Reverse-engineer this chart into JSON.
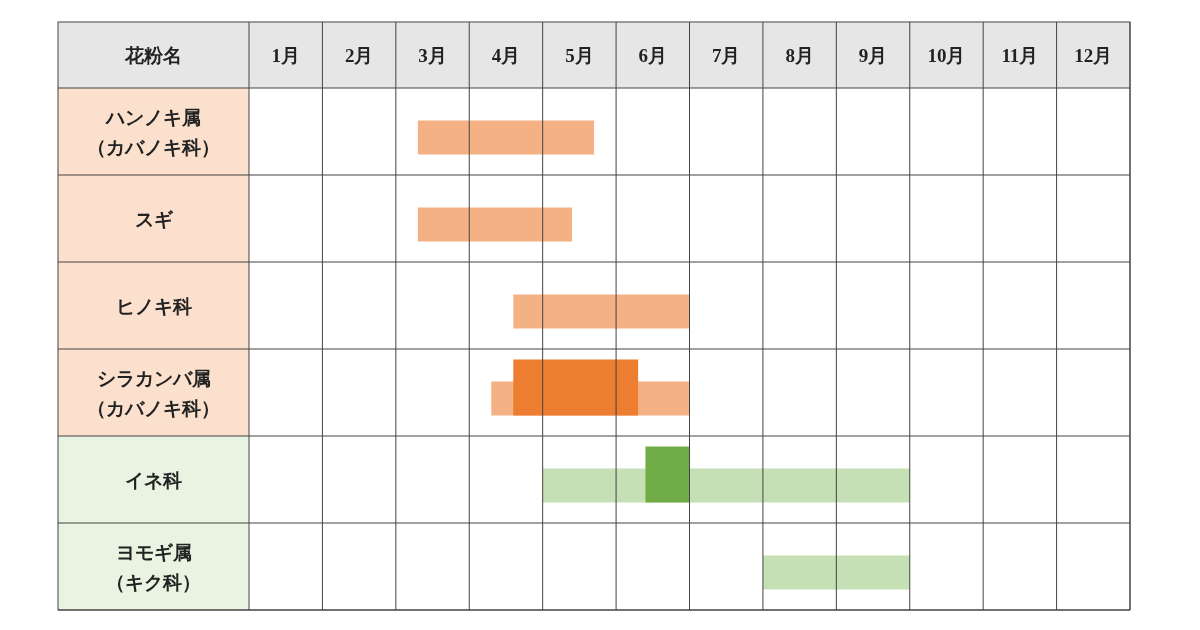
{
  "chart_data": {
    "type": "bar",
    "orientation": "horizontal",
    "ylabel": "花粉名",
    "categories": [
      "ハンノキ属（カバノキ科）",
      "スギ",
      "ヒノキ科",
      "シラカンバ属（カバノキ科）",
      "イネ科",
      "ヨモギ属（キク科）"
    ],
    "series": [
      {
        "colors": [
          "#f4b183",
          "#f4b183",
          "#f4b183",
          "#f4b183",
          "#c5e0b4",
          "#c5e0b4"
        ],
        "base": [
          2.3,
          2.3,
          3.6,
          3.3,
          4.0,
          7.0
        ],
        "values": [
          2.4,
          2.1,
          2.4,
          2.7,
          5.0,
          2.0
        ]
      },
      {
        "colors": [
          null,
          null,
          null,
          "#ed7d31",
          "#70ad47",
          null
        ],
        "base": [
          null,
          null,
          null,
          3.6,
          5.4,
          null
        ],
        "values": [
          null,
          null,
          null,
          1.7,
          0.6,
          null
        ]
      }
    ],
    "xlim": [
      0,
      12
    ],
    "xticks": [
      {
        "value": 0,
        "label": null
      },
      {
        "value": 0.5,
        "label": "1月"
      },
      {
        "value": 1,
        "label": null
      },
      {
        "value": 1.5,
        "label": "2月"
      },
      {
        "value": 2,
        "label": null
      },
      {
        "value": 2.5,
        "label": "3月"
      },
      {
        "value": 3,
        "label": null
      },
      {
        "value": 3.5,
        "label": "4月"
      },
      {
        "value": 4,
        "label": null
      },
      {
        "value": 4.5,
        "label": "5月"
      },
      {
        "value": 5,
        "label": null
      },
      {
        "value": 5.5,
        "label": "6月"
      },
      {
        "value": 6,
        "label": null
      },
      {
        "value": 6.5,
        "label": "7月"
      },
      {
        "value": 7,
        "label": null
      },
      {
        "value": 7.5,
        "label": "8月"
      },
      {
        "value": 8,
        "label": null
      },
      {
        "value": 8.5,
        "label": "9月"
      },
      {
        "value": 9,
        "label": null
      },
      {
        "value": 9.5,
        "label": "10月"
      },
      {
        "value": 10,
        "label": null
      },
      {
        "value": 10.5,
        "label": "11月"
      },
      {
        "value": 11,
        "label": null
      },
      {
        "value": 11.5,
        "label": "12月"
      },
      {
        "value": 12,
        "label": null
      }
    ],
    "grid": true
  }
}
